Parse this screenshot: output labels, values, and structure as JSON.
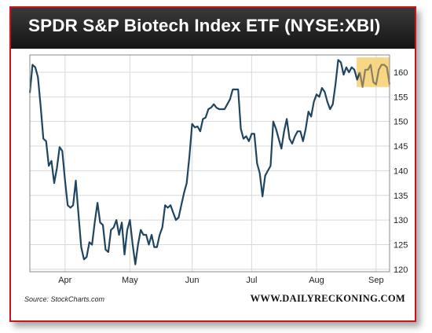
{
  "title": "SPDR S&P Biotech Index ETF (NYSE:XBI)",
  "source": "Source: StockCharts.com",
  "brand": "WWW.DAILYRECKONING.COM",
  "colors": {
    "frame": "#c8141b",
    "header": "#1e1e1e",
    "line": "#1f4560",
    "highlight": "#f7d06e",
    "highlight_line": "#8a7f62"
  },
  "chart_data": {
    "type": "line",
    "title": "SPDR S&P Biotech Index ETF (NYSE:XBI)",
    "xlabel": "",
    "ylabel": "",
    "x_ticks": [
      "Apr",
      "May",
      "Jun",
      "Jul",
      "Aug",
      "Sep"
    ],
    "x_tick_index": [
      13,
      37,
      60,
      82,
      106,
      128
    ],
    "y_ticks": [
      120,
      125,
      130,
      135,
      140,
      145,
      150,
      155,
      160
    ],
    "ylim": [
      119.5,
      163.5
    ],
    "grid": true,
    "highlight": {
      "from_index": 122,
      "to_index": 136,
      "ymin": 157,
      "ymax": 163
    },
    "series": [
      {
        "values": [
          155.8,
          161.5,
          161.0,
          159.0,
          153.0,
          146.5,
          146.0,
          141.0,
          142.0,
          137.5,
          140.5,
          144.8,
          144.0,
          138.0,
          133.0,
          132.5,
          133.0,
          138.0,
          131.0,
          124.5,
          122.0,
          122.5,
          125.5,
          125.0,
          129.5,
          133.5,
          129.5,
          129.0,
          124.0,
          123.5,
          128.0,
          128.5,
          130.0,
          127.0,
          129.5,
          123.0,
          128.0,
          130.0,
          125.0,
          121.0,
          125.0,
          128.0,
          127.0,
          127.0,
          125.0,
          127.0,
          124.5,
          124.5,
          127.0,
          128.5,
          133.0,
          132.5,
          133.0,
          131.5,
          130.0,
          130.5,
          133.0,
          135.5,
          137.5,
          143.0,
          149.5,
          148.8,
          149.0,
          148.0,
          150.5,
          150.8,
          152.5,
          152.8,
          153.5,
          152.8,
          152.5,
          152.5,
          152.5,
          153.5,
          154.5,
          156.5,
          156.5,
          156.5,
          148.5,
          146.5,
          147.0,
          146.0,
          147.5,
          147.5,
          141.5,
          139.5,
          134.8,
          139.0,
          140.0,
          141.0,
          150.0,
          148.5,
          146.5,
          144.5,
          148.0,
          150.5,
          146.5,
          145.5,
          147.0,
          148.0,
          148.0,
          146.0,
          148.5,
          152.0,
          151.0,
          154.0,
          155.5,
          155.0,
          156.8,
          156.0,
          154.0,
          152.5,
          153.5,
          157.5,
          162.5,
          162.0,
          159.5,
          161.0,
          160.0,
          161.0,
          160.5,
          158.5,
          160.0,
          157.0,
          160.5,
          160.5,
          161.5,
          158.0,
          157.5,
          160.5,
          161.5,
          161.5,
          161.0,
          157.5
        ]
      }
    ]
  }
}
